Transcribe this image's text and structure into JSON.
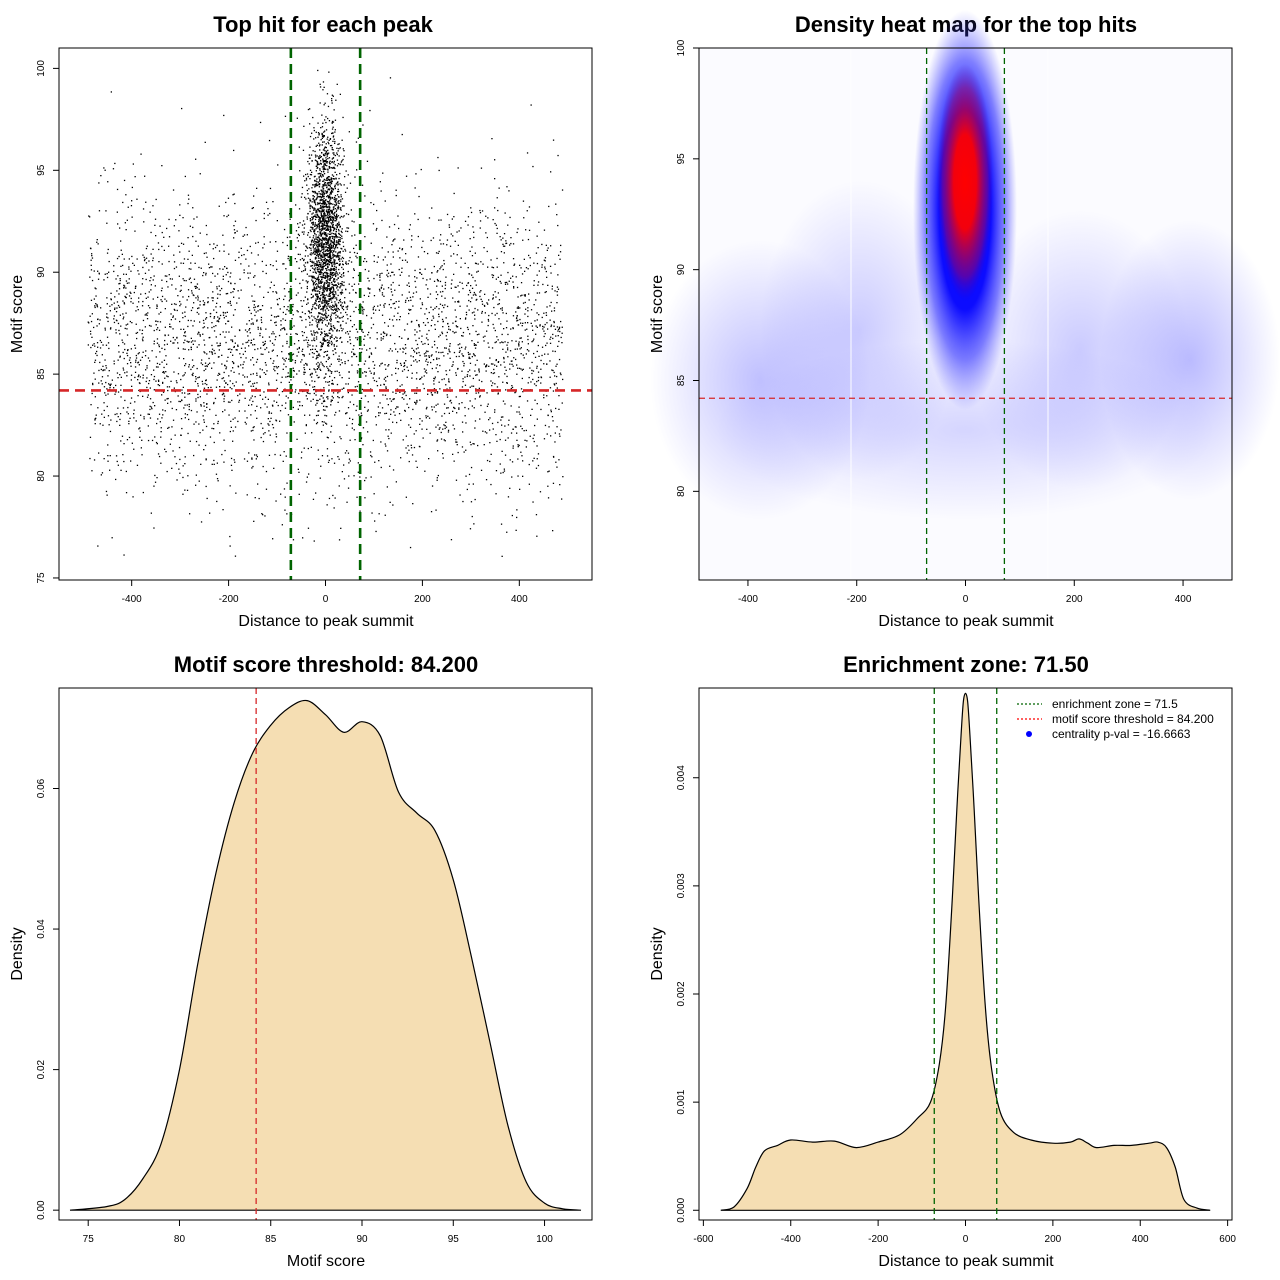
{
  "chart_data": [
    {
      "type": "scatter",
      "title": "Top hit for each peak",
      "xlabel": "Distance to peak summit",
      "ylabel": "Motif score",
      "xlim": [
        -550,
        550
      ],
      "ylim": [
        74.9,
        101
      ],
      "xticks": [
        -400,
        -200,
        0,
        200,
        400
      ],
      "yticks": [
        75,
        80,
        85,
        90,
        95,
        100
      ],
      "xtick_labels": [
        "-400",
        "-200",
        "0",
        "200",
        "400"
      ],
      "ytick_labels": [
        "75",
        "80",
        "85",
        "90",
        "95",
        "100"
      ],
      "point_color": "#000000",
      "background_distribution": {
        "x_range": [
          -490,
          490
        ],
        "y_mean": 86.5,
        "y_sd": 3.6,
        "approx_count": 3800
      },
      "central_cluster": {
        "x_mean": 0,
        "x_sd": 18,
        "y_mean": 91.5,
        "y_sd": 2.8,
        "approx_count": 2100
      },
      "vlines": [
        {
          "x": -71.5,
          "color": "#006400",
          "style": "dashed"
        },
        {
          "x": 71.5,
          "color": "#006400",
          "style": "dashed"
        }
      ],
      "hlines": [
        {
          "y": 84.2,
          "color": "#d62728",
          "style": "dashed"
        }
      ],
      "grid": false
    },
    {
      "type": "heatmap",
      "title": "Density heat map for the top hits",
      "xlabel": "Distance to peak summit",
      "ylabel": "Motif score",
      "xlim": [
        -490,
        490
      ],
      "ylim": [
        76,
        100
      ],
      "xticks": [
        -400,
        -200,
        0,
        200,
        400
      ],
      "yticks": [
        80,
        85,
        90,
        95,
        100
      ],
      "xtick_labels": [
        "-400",
        "-200",
        "0",
        "200",
        "400"
      ],
      "ytick_labels": [
        "80",
        "85",
        "90",
        "95",
        "100"
      ],
      "colormap": [
        "#ffffff",
        "#0000ff",
        "#ff0000"
      ],
      "density_peak": {
        "x": 0,
        "y": 93.5
      },
      "vlines": [
        {
          "x": -71.5,
          "color": "#006400",
          "style": "dashed"
        },
        {
          "x": 71.5,
          "color": "#006400",
          "style": "dashed"
        }
      ],
      "hlines": [
        {
          "y": 84.2,
          "color": "#d62728",
          "style": "dashed"
        }
      ],
      "grid": false
    },
    {
      "type": "area",
      "title": "Motif score threshold: 84.200",
      "xlabel": "Motif score",
      "ylabel": "Density",
      "xlim": [
        73.4,
        102.6
      ],
      "ylim": [
        -0.0014,
        0.0743
      ],
      "xticks": [
        75,
        80,
        85,
        90,
        95,
        100
      ],
      "yticks": [
        0,
        0.02,
        0.04,
        0.06
      ],
      "xtick_labels": [
        "75",
        "80",
        "85",
        "90",
        "95",
        "100"
      ],
      "ytick_labels": [
        "0.00",
        "0.02",
        "0.04",
        "0.06"
      ],
      "x": [
        74,
        76,
        77,
        78,
        79,
        80,
        81,
        82,
        83,
        84,
        85,
        86,
        87,
        88,
        89,
        90,
        91,
        92,
        93,
        94,
        95,
        96,
        97,
        98,
        99,
        100,
        101,
        102
      ],
      "y": [
        0,
        0.0005,
        0.0015,
        0.0045,
        0.0095,
        0.02,
        0.035,
        0.048,
        0.058,
        0.065,
        0.069,
        0.0715,
        0.0725,
        0.0705,
        0.068,
        0.0695,
        0.0675,
        0.0595,
        0.0565,
        0.054,
        0.047,
        0.036,
        0.024,
        0.012,
        0.004,
        0.001,
        0.0002,
        0
      ],
      "fill_color": "#f5deb3",
      "vlines": [
        {
          "x": 84.2,
          "color": "#d62728",
          "style": "dashed"
        }
      ],
      "grid": false
    },
    {
      "type": "area",
      "title": "Enrichment zone: 71.50",
      "xlabel": "Distance to peak summit",
      "ylabel": "Density",
      "xlim": [
        -610,
        610
      ],
      "ylim": [
        -9e-05,
        0.00483
      ],
      "xticks": [
        -600,
        -400,
        -200,
        0,
        200,
        400,
        600
      ],
      "yticks": [
        0,
        0.001,
        0.002,
        0.003,
        0.004
      ],
      "xtick_labels": [
        "-600",
        "-400",
        "-200",
        "0",
        "200",
        "400",
        "600"
      ],
      "ytick_labels": [
        "0.000",
        "0.001",
        "0.002",
        "0.003",
        "0.004"
      ],
      "x": [
        -560,
        -530,
        -500,
        -480,
        -460,
        -430,
        -400,
        -350,
        -300,
        -250,
        -200,
        -150,
        -110,
        -80,
        -60,
        -45,
        -30,
        -20,
        -10,
        -5,
        0,
        5,
        10,
        20,
        30,
        45,
        60,
        80,
        110,
        150,
        200,
        240,
        260,
        280,
        300,
        340,
        380,
        420,
        440,
        460,
        480,
        500,
        530,
        560
      ],
      "y": [
        0,
        3e-05,
        0.0002,
        0.0004,
        0.00055,
        0.0006,
        0.00065,
        0.00063,
        0.00064,
        0.00058,
        0.00063,
        0.0007,
        0.00085,
        0.001,
        0.00135,
        0.0019,
        0.0029,
        0.0037,
        0.0044,
        0.0047,
        0.00478,
        0.0047,
        0.0044,
        0.0037,
        0.0029,
        0.0019,
        0.0013,
        0.0009,
        0.00072,
        0.00065,
        0.00062,
        0.00063,
        0.00066,
        0.00062,
        0.00058,
        0.0006,
        0.0006,
        0.00062,
        0.00063,
        0.00058,
        0.0004,
        0.0001,
        2e-05,
        0
      ],
      "fill_color": "#f5deb3",
      "vlines": [
        {
          "x": -71.5,
          "color": "#006400",
          "style": "dashed"
        },
        {
          "x": 71.5,
          "color": "#006400",
          "style": "dashed"
        }
      ],
      "legend": {
        "placement": "top-right",
        "entries": [
          {
            "label": "enrichment zone = 71.5",
            "color": "#006400",
            "marker": "dotted-line"
          },
          {
            "label": "motif score threshold = 84.200",
            "color": "#ff0000",
            "marker": "dotted-line"
          },
          {
            "label": "centrality p-val = -16.6663",
            "color": "#0000ff",
            "marker": "dot"
          }
        ]
      },
      "grid": false
    }
  ]
}
